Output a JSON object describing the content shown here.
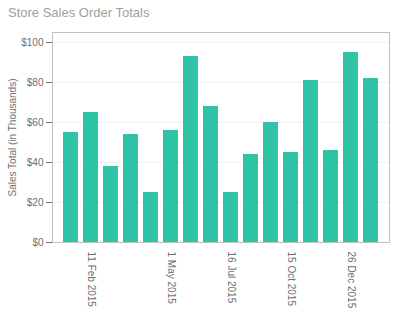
{
  "chart_data": {
    "type": "bar",
    "title": "Store Sales Order Totals",
    "ylabel": "Sales Total (in Thousands)",
    "categories": [
      null,
      "11 Feb 2015",
      null,
      null,
      null,
      "1 May 2015",
      null,
      null,
      "16 Jul 2015",
      null,
      null,
      "15 Oct 2015",
      null,
      null,
      "26 Dec 2015",
      null
    ],
    "values": [
      55,
      65,
      38,
      54,
      25,
      56,
      93,
      68,
      25,
      44,
      60,
      45,
      81,
      46,
      95,
      82
    ],
    "color": "#2EC4A5",
    "ylim": [
      0,
      105
    ],
    "yticks": [
      {
        "value": 0,
        "label": "$0"
      },
      {
        "value": 20,
        "label": "$20"
      },
      {
        "value": 40,
        "label": "$40"
      },
      {
        "value": 60,
        "label": "$60"
      },
      {
        "value": 80,
        "label": "$80"
      },
      {
        "value": 100,
        "label": "$100"
      }
    ],
    "grid": true
  }
}
